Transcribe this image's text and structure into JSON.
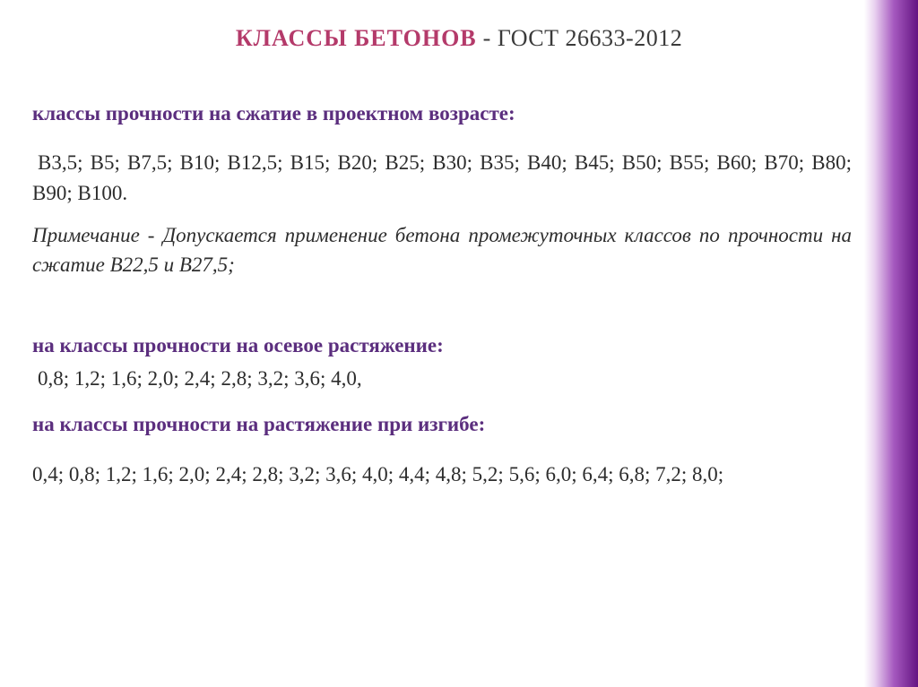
{
  "colors": {
    "title_highlight": "#b43a6a",
    "title_rest": "#3a3a3a",
    "subheading": "#5b2e7e",
    "body_text": "#2d2d2d",
    "background": "#ffffff",
    "side_gradient_from": "rgba(200,160,220,0)",
    "side_gradient_to": "#641482"
  },
  "typography": {
    "family": "Georgia / serif",
    "title_size_pt": 20,
    "body_size_pt": 17
  },
  "title": {
    "highlight": "Классы бетонов",
    "separator": " - ",
    "rest": "ГОСТ 26633-2012"
  },
  "sections": {
    "compression": {
      "heading": "классы прочности на сжатие в проектном возрасте:",
      "values_line": "В3,5; В5; В7,5; В10; В12,5; В15; В20; В25; В30; В35; В40; В45; В50; В55; В60; В70; В80; В90; В100.",
      "note": "Примечание - Допускается применение бетона промежуточных классов по прочности на сжатие В22,5 и В27,5;"
    },
    "axial_tension": {
      "heading": "на классы прочности на осевое растяжение:",
      "values_line": "0,8; 1,2; 1,6; 2,0; 2,4; 2,8; 3,2; 3,6; 4,0,"
    },
    "flexural_tension": {
      "heading": "на классы прочности на растяжение при изгибе:",
      "values_line": "0,4; 0,8; 1,2; 1,6; 2,0; 2,4; 2,8; 3,2; 3,6; 4,0; 4,4; 4,8; 5,2; 5,6; 6,0; 6,4; 6,8; 7,2; 8,0;"
    }
  }
}
